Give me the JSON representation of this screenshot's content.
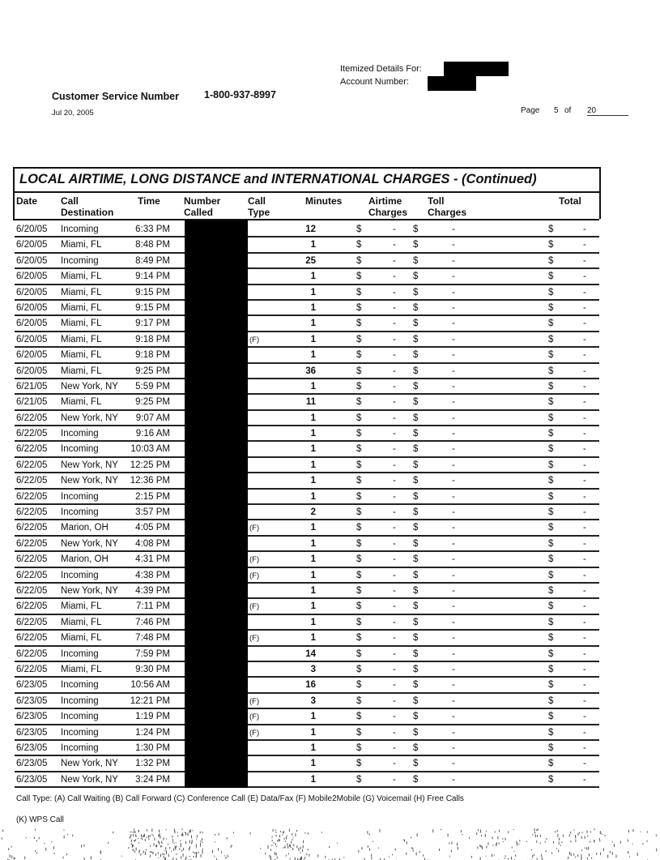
{
  "header": {
    "itemized_label": "Itemized Details For:",
    "account_label": "Account Number:",
    "customer_service_label": "Customer Service Number",
    "customer_service_number": "1-800-937-8997",
    "date": "Jul 20, 2005",
    "page_label": "Page",
    "page_current": "5",
    "page_of": "of",
    "page_total": "20"
  },
  "table": {
    "title": "LOCAL AIRTIME, LONG DISTANCE and INTERNATIONAL CHARGES  - (Continued)",
    "columns": {
      "date": "Date",
      "destination": "Call\nDestination",
      "time": "Time",
      "number": "Number\nCalled",
      "type": "Call\nType",
      "minutes": "Minutes",
      "airtime": "Airtime\nCharges",
      "toll": "Toll\nCharges",
      "total": "Total"
    },
    "currency": "$",
    "charge_placeholder": "-",
    "rows": [
      [
        "6/20/05",
        "Incoming",
        "6:33 PM",
        "",
        "12"
      ],
      [
        "6/20/05",
        "Miami, FL",
        "8:48 PM",
        "",
        "1"
      ],
      [
        "6/20/05",
        "Incoming",
        "8:49 PM",
        "",
        "25"
      ],
      [
        "6/20/05",
        "Miami, FL",
        "9:14 PM",
        "",
        "1"
      ],
      [
        "6/20/05",
        "Miami, FL",
        "9:15 PM",
        "",
        "1"
      ],
      [
        "6/20/05",
        "Miami, FL",
        "9:15 PM",
        "",
        "1"
      ],
      [
        "6/20/05",
        "Miami, FL",
        "9:17 PM",
        "",
        "1"
      ],
      [
        "6/20/05",
        "Miami, FL",
        "9:18 PM",
        "(F)",
        "1"
      ],
      [
        "6/20/05",
        "Miami, FL",
        "9:18 PM",
        "",
        "1"
      ],
      [
        "6/20/05",
        "Miami, FL",
        "9:25 PM",
        "",
        "36"
      ],
      [
        "6/21/05",
        "New York, NY",
        "5:59 PM",
        "",
        "1"
      ],
      [
        "6/21/05",
        "Miami, FL",
        "9:25 PM",
        "",
        "11"
      ],
      [
        "6/22/05",
        "New York, NY",
        "9:07 AM",
        "",
        "1"
      ],
      [
        "6/22/05",
        "Incoming",
        "9:16 AM",
        "",
        "1"
      ],
      [
        "6/22/05",
        "Incoming",
        "10:03 AM",
        "",
        "1"
      ],
      [
        "6/22/05",
        "New York, NY",
        "12:25 PM",
        "",
        "1"
      ],
      [
        "6/22/05",
        "New York, NY",
        "12:36 PM",
        "",
        "1"
      ],
      [
        "6/22/05",
        "Incoming",
        "2:15 PM",
        "",
        "1"
      ],
      [
        "6/22/05",
        "Incoming",
        "3:57 PM",
        "",
        "2"
      ],
      [
        "6/22/05",
        "Marion, OH",
        "4:05 PM",
        "(F)",
        "1"
      ],
      [
        "6/22/05",
        "New York, NY",
        "4:08 PM",
        "",
        "1"
      ],
      [
        "6/22/05",
        "Marion, OH",
        "4:31 PM",
        "(F)",
        "1"
      ],
      [
        "6/22/05",
        "Incoming",
        "4:38 PM",
        "(F)",
        "1"
      ],
      [
        "6/22/05",
        "New York, NY",
        "4:39 PM",
        "",
        "1"
      ],
      [
        "6/22/05",
        "Miami, FL",
        "7:11 PM",
        "(F)",
        "1"
      ],
      [
        "6/22/05",
        "Miami, FL",
        "7:46 PM",
        "",
        "1"
      ],
      [
        "6/22/05",
        "Miami, FL",
        "7:48 PM",
        "(F)",
        "1"
      ],
      [
        "6/22/05",
        "Incoming",
        "7:59 PM",
        "",
        "14"
      ],
      [
        "6/22/05",
        "Miami, FL",
        "9:30 PM",
        "",
        "3"
      ],
      [
        "6/23/05",
        "Incoming",
        "10:56 AM",
        "",
        "16"
      ],
      [
        "6/23/05",
        "Incoming",
        "12:21 PM",
        "(F)",
        "3"
      ],
      [
        "6/23/05",
        "Incoming",
        "1:19 PM",
        "(F)",
        "1"
      ],
      [
        "6/23/05",
        "Incoming",
        "1:24 PM",
        "(F)",
        "1"
      ],
      [
        "6/23/05",
        "Incoming",
        "1:30 PM",
        "",
        "1"
      ],
      [
        "6/23/05",
        "New York, NY",
        "1:32 PM",
        "",
        "1"
      ],
      [
        "6/23/05",
        "New York, NY",
        "3:24 PM",
        "",
        "1"
      ]
    ]
  },
  "footer": {
    "call_type_legend": "Call Type: (A) Call Waiting (B) Call Forward (C) Conference Call (E) Data/Fax (F) Mobile2Mobile (G) Voicemail (H) Free Calls",
    "call_type_legend_2": "(K) WPS Call"
  }
}
